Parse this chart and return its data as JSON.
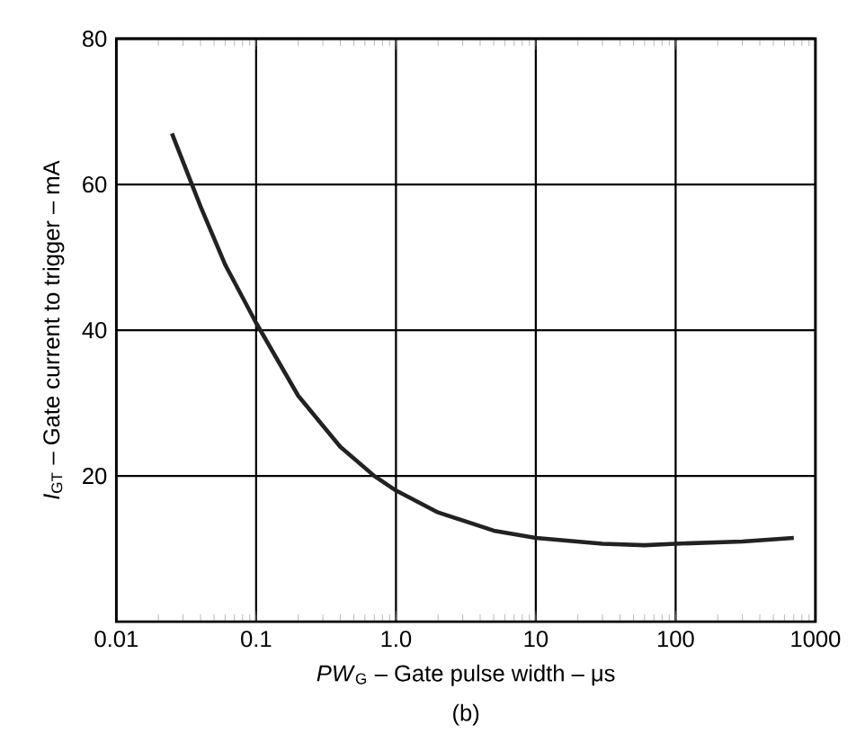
{
  "chart_data": {
    "type": "line",
    "xlabel": "*PW*$_{G}$ – Gate pulse width – μs",
    "ylabel": "*I*$_{GT}$ – Gate current to trigger – mA",
    "annotations": [
      "(b)"
    ],
    "log": "x",
    "grid": true,
    "marker": "none",
    "line_style": "solid",
    "xlim": [
      0.01,
      1000
    ],
    "ylim": [
      0,
      80
    ],
    "xticks": [
      0.01,
      0.1,
      {
        "value": 1,
        "label": "1.0"
      },
      10,
      100,
      1000
    ],
    "yticks": [
      20,
      40,
      60,
      80
    ],
    "series": [
      {
        "color": "#222222",
        "x": [
          0.025,
          0.04,
          0.06,
          0.1,
          0.2,
          0.4,
          0.7,
          1,
          2,
          5,
          10,
          30,
          60,
          100,
          300,
          700
        ],
        "values": [
          67,
          57,
          49,
          41,
          31,
          24,
          20,
          18,
          15,
          12.5,
          11.5,
          10.7,
          10.5,
          10.7,
          11,
          11.5
        ]
      }
    ]
  }
}
